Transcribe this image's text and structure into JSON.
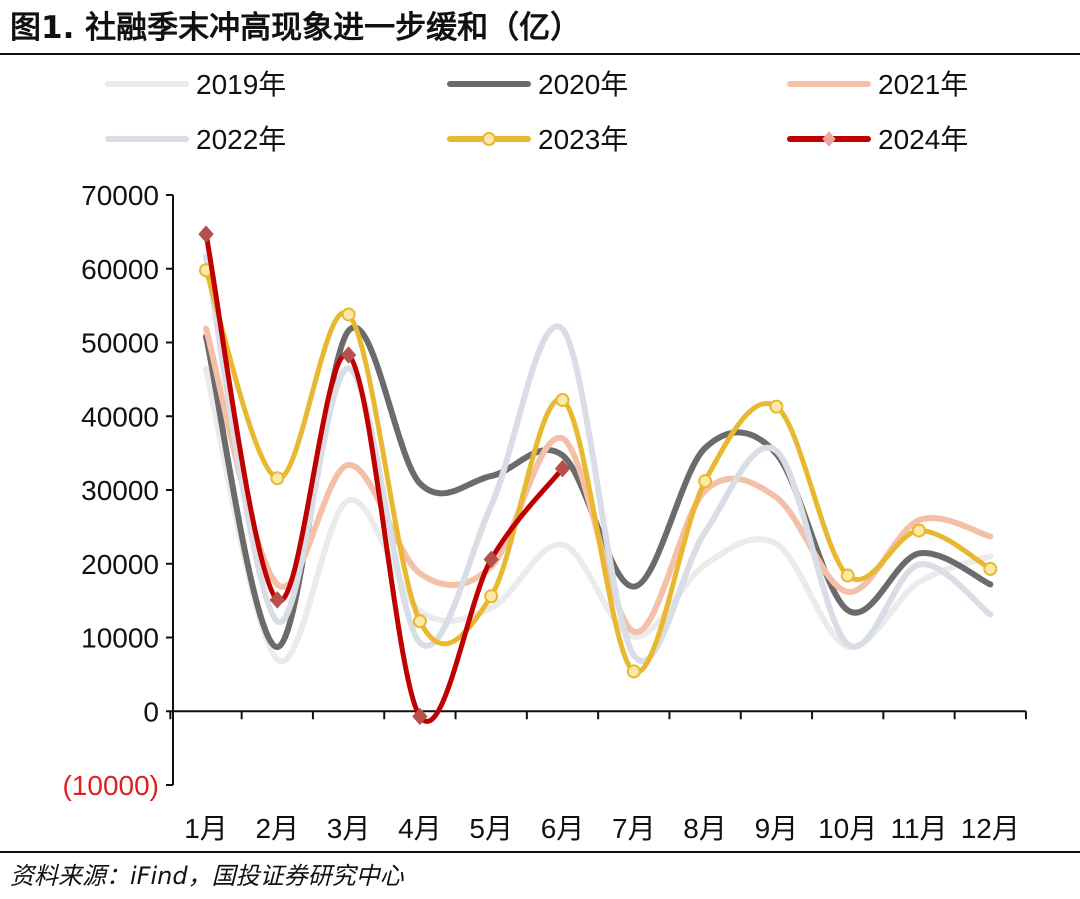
{
  "figure": {
    "title": "图1. 社融季末冲高现象进一步缓和（亿）",
    "source": "资料来源：iFind，国投证券研究中心"
  },
  "chart_data": {
    "type": "line",
    "title": "图1. 社融季末冲高现象进一步缓和（亿）",
    "categories": [
      "1月",
      "2月",
      "3月",
      "4月",
      "5月",
      "6月",
      "7月",
      "8月",
      "9月",
      "10月",
      "11月",
      "12月"
    ],
    "ylim": [
      -10000,
      70000
    ],
    "yticks": [
      -10000,
      0,
      10000,
      20000,
      30000,
      40000,
      50000,
      60000,
      70000
    ],
    "ytick_labels": [
      "(10000)",
      "0",
      "10000",
      "20000",
      "30000",
      "40000",
      "50000",
      "60000",
      "70000"
    ],
    "negative_tick_color": "#e02020",
    "legend_position": "top",
    "series": [
      {
        "name": "2019年",
        "color": "#ebebeb",
        "marker": "none",
        "values": [
          46400,
          7000,
          28600,
          13600,
          14000,
          22600,
          10100,
          19900,
          22700,
          8800,
          17500,
          21000
        ]
      },
      {
        "name": "2020年",
        "color": "#6b6b6b",
        "marker": "none",
        "values": [
          50800,
          8700,
          51600,
          30900,
          31900,
          34700,
          16900,
          35700,
          34900,
          13700,
          21400,
          17200
        ]
      },
      {
        "name": "2021年",
        "color": "#f4c1a8",
        "marker": "none",
        "values": [
          51900,
          17200,
          33400,
          18700,
          19600,
          37000,
          10800,
          29900,
          29000,
          16200,
          25900,
          23700
        ]
      },
      {
        "name": "2022年",
        "color": "#d9dde6",
        "marker": "none",
        "values": [
          61700,
          12200,
          46500,
          9300,
          27900,
          51800,
          7600,
          24300,
          35300,
          9100,
          19900,
          13100
        ]
      },
      {
        "name": "2023年",
        "color": "#e8b830",
        "marker": "circle",
        "values": [
          59800,
          31600,
          53800,
          12200,
          15600,
          42200,
          5400,
          31200,
          41300,
          18400,
          24500,
          19300
        ]
      },
      {
        "name": "2024年",
        "color": "#c00000",
        "marker": "diamond",
        "values": [
          64700,
          15100,
          48300,
          -700,
          20600,
          32900,
          null,
          null,
          null,
          null,
          null,
          null
        ]
      }
    ]
  }
}
